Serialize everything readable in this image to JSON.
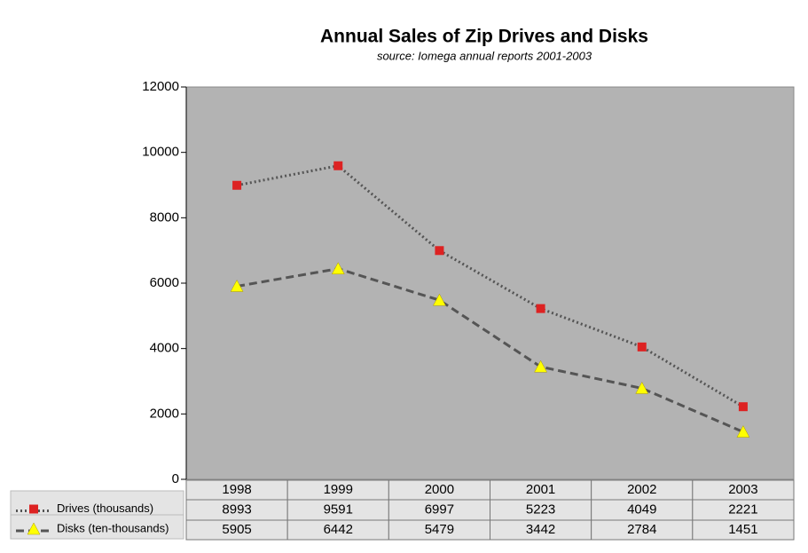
{
  "chart_data": {
    "type": "line",
    "title": "Annual Sales of Zip Drives and Disks",
    "subtitle": "source: Iomega annual reports 2001-2003",
    "categories": [
      "1998",
      "1999",
      "2000",
      "2001",
      "2002",
      "2003"
    ],
    "series": [
      {
        "name": "Drives (thousands)",
        "color": "#dd2222",
        "line_color": "#555555",
        "line_style": "dotted",
        "marker": "square",
        "values": [
          8993,
          9591,
          6997,
          5223,
          4049,
          2221
        ]
      },
      {
        "name": "Disks (ten-thousands)",
        "color": "#ffff00",
        "line_color": "#555555",
        "line_style": "dashed",
        "marker": "triangle",
        "values": [
          5905,
          6442,
          5479,
          3442,
          2784,
          1451
        ]
      }
    ],
    "ylim": [
      0,
      12000
    ],
    "yticks": [
      0,
      2000,
      4000,
      6000,
      8000,
      10000,
      12000
    ],
    "plot_background": "#b3b3b3",
    "data_table": true
  }
}
